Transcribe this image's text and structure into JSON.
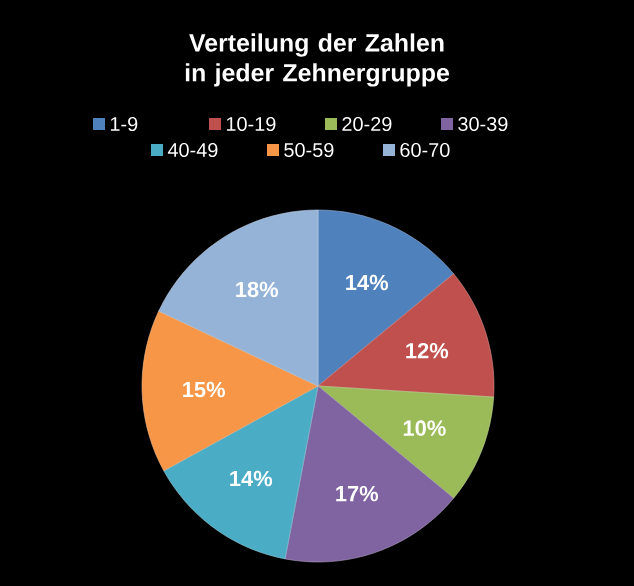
{
  "chart_data": {
    "type": "pie",
    "title": "Verteilung der Zahlen in jeder Zehnergruppe",
    "categories": [
      "1-9",
      "10-19",
      "20-29",
      "30-39",
      "40-49",
      "50-59",
      "60-70"
    ],
    "values": [
      14,
      12,
      10,
      17,
      14,
      15,
      18
    ],
    "value_labels": [
      "14%",
      "12%",
      "10%",
      "17%",
      "14%",
      "15%",
      "18%"
    ],
    "colors": [
      "#4f81bd",
      "#c0504d",
      "#9bbb59",
      "#8064a2",
      "#4bacc6",
      "#f79646",
      "#95b3d7"
    ],
    "legend": "top"
  }
}
